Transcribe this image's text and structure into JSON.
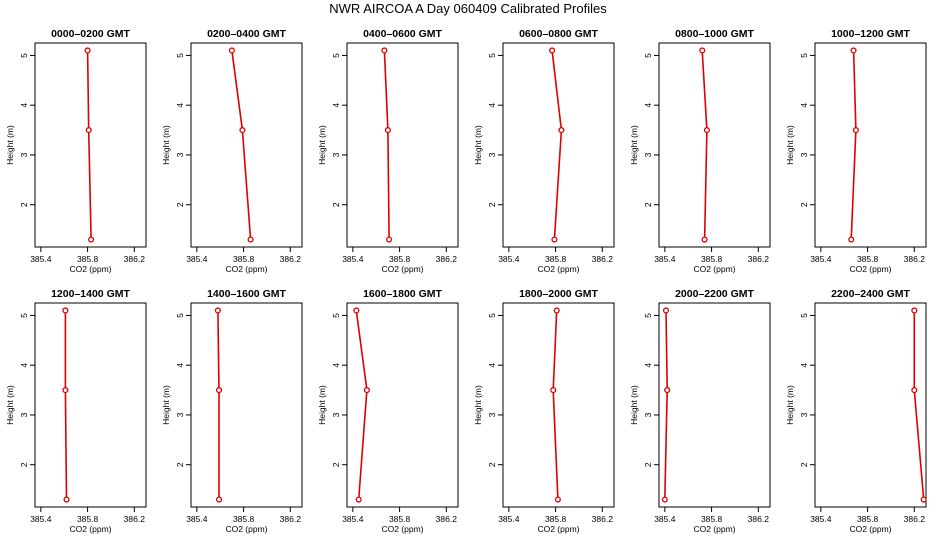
{
  "figure": {
    "title": "NWR AIRCOA A  Day 060409  Calibrated Profiles"
  },
  "style": {
    "series_color": "#dd0000",
    "axis_color": "#000000"
  },
  "chart_data": [
    {
      "type": "line",
      "title": "0000–0200 GMT",
      "xlabel": "CO2 (ppm)",
      "ylabel": "Height (m)",
      "xlim": [
        385.35,
        386.3
      ],
      "ylim": [
        1.15,
        5.25
      ],
      "xticks": [
        385.4,
        385.8,
        386.2
      ],
      "xtick_labels": [
        "385.4",
        "385.8",
        "386.2"
      ],
      "yticks": [
        2,
        3,
        4,
        5
      ],
      "ytick_labels": [
        "2",
        "3",
        "4",
        "5"
      ],
      "grid": false,
      "x": [
        385.8,
        385.81,
        385.83
      ],
      "y": [
        5.1,
        3.5,
        1.3
      ]
    },
    {
      "type": "line",
      "title": "0200–0400 GMT",
      "xlabel": "CO2 (ppm)",
      "ylabel": "Height (m)",
      "xlim": [
        385.35,
        386.3
      ],
      "ylim": [
        1.15,
        5.25
      ],
      "xticks": [
        385.4,
        385.8,
        386.2
      ],
      "xtick_labels": [
        "385.4",
        "385.8",
        "386.2"
      ],
      "yticks": [
        2,
        3,
        4,
        5
      ],
      "ytick_labels": [
        "2",
        "3",
        "4",
        "5"
      ],
      "grid": false,
      "x": [
        385.7,
        385.79,
        385.86
      ],
      "y": [
        5.1,
        3.5,
        1.3
      ]
    },
    {
      "type": "line",
      "title": "0400–0600 GMT",
      "xlabel": "CO2 (ppm)",
      "ylabel": "Height (m)",
      "xlim": [
        385.35,
        386.3
      ],
      "ylim": [
        1.15,
        5.25
      ],
      "xticks": [
        385.4,
        385.8,
        386.2
      ],
      "xtick_labels": [
        "385.4",
        "385.8",
        "386.2"
      ],
      "yticks": [
        2,
        3,
        4,
        5
      ],
      "ytick_labels": [
        "2",
        "3",
        "4",
        "5"
      ],
      "grid": false,
      "x": [
        385.67,
        385.7,
        385.71
      ],
      "y": [
        5.1,
        3.5,
        1.3
      ]
    },
    {
      "type": "line",
      "title": "0600–0800 GMT",
      "xlabel": "CO2 (ppm)",
      "ylabel": "Height (m)",
      "xlim": [
        385.35,
        386.3
      ],
      "ylim": [
        1.15,
        5.25
      ],
      "xticks": [
        385.4,
        385.8,
        386.2
      ],
      "xtick_labels": [
        "385.4",
        "385.8",
        "386.2"
      ],
      "yticks": [
        2,
        3,
        4,
        5
      ],
      "ytick_labels": [
        "2",
        "3",
        "4",
        "5"
      ],
      "grid": false,
      "x": [
        385.77,
        385.85,
        385.79
      ],
      "y": [
        5.1,
        3.5,
        1.3
      ]
    },
    {
      "type": "line",
      "title": "0800–1000 GMT",
      "xlabel": "CO2 (ppm)",
      "ylabel": "Height (m)",
      "xlim": [
        385.35,
        386.3
      ],
      "ylim": [
        1.15,
        5.25
      ],
      "xticks": [
        385.4,
        385.8,
        386.2
      ],
      "xtick_labels": [
        "385.4",
        "385.8",
        "386.2"
      ],
      "yticks": [
        2,
        3,
        4,
        5
      ],
      "ytick_labels": [
        "2",
        "3",
        "4",
        "5"
      ],
      "grid": false,
      "x": [
        385.72,
        385.76,
        385.74
      ],
      "y": [
        5.1,
        3.5,
        1.3
      ]
    },
    {
      "type": "line",
      "title": "1000–1200 GMT",
      "xlabel": "CO2 (ppm)",
      "ylabel": "Height (m)",
      "xlim": [
        385.35,
        386.3
      ],
      "ylim": [
        1.15,
        5.25
      ],
      "xticks": [
        385.4,
        385.8,
        386.2
      ],
      "xtick_labels": [
        "385.4",
        "385.8",
        "386.2"
      ],
      "yticks": [
        2,
        3,
        4,
        5
      ],
      "ytick_labels": [
        "2",
        "3",
        "4",
        "5"
      ],
      "grid": false,
      "x": [
        385.68,
        385.7,
        385.66
      ],
      "y": [
        5.1,
        3.5,
        1.3
      ]
    },
    {
      "type": "line",
      "title": "1200–1400 GMT",
      "xlabel": "CO2 (ppm)",
      "ylabel": "Height (m)",
      "xlim": [
        385.35,
        386.3
      ],
      "ylim": [
        1.15,
        5.25
      ],
      "xticks": [
        385.4,
        385.8,
        386.2
      ],
      "xtick_labels": [
        "385.4",
        "385.8",
        "386.2"
      ],
      "yticks": [
        2,
        3,
        4,
        5
      ],
      "ytick_labels": [
        "2",
        "3",
        "4",
        "5"
      ],
      "grid": false,
      "x": [
        385.61,
        385.61,
        385.62
      ],
      "y": [
        5.1,
        3.5,
        1.3
      ]
    },
    {
      "type": "line",
      "title": "1400–1600 GMT",
      "xlabel": "CO2 (ppm)",
      "ylabel": "Height (m)",
      "xlim": [
        385.35,
        386.3
      ],
      "ylim": [
        1.15,
        5.25
      ],
      "xticks": [
        385.4,
        385.8,
        386.2
      ],
      "xtick_labels": [
        "385.4",
        "385.8",
        "386.2"
      ],
      "yticks": [
        2,
        3,
        4,
        5
      ],
      "ytick_labels": [
        "2",
        "3",
        "4",
        "5"
      ],
      "grid": false,
      "x": [
        385.58,
        385.59,
        385.59
      ],
      "y": [
        5.1,
        3.5,
        1.3
      ]
    },
    {
      "type": "line",
      "title": "1600–1800 GMT",
      "xlabel": "CO2 (ppm)",
      "ylabel": "Height (m)",
      "xlim": [
        385.35,
        386.3
      ],
      "ylim": [
        1.15,
        5.25
      ],
      "xticks": [
        385.4,
        385.8,
        386.2
      ],
      "xtick_labels": [
        "385.4",
        "385.8",
        "386.2"
      ],
      "yticks": [
        2,
        3,
        4,
        5
      ],
      "ytick_labels": [
        "2",
        "3",
        "4",
        "5"
      ],
      "grid": false,
      "x": [
        385.43,
        385.52,
        385.45
      ],
      "y": [
        5.1,
        3.5,
        1.3
      ]
    },
    {
      "type": "line",
      "title": "1800–2000 GMT",
      "xlabel": "CO2 (ppm)",
      "ylabel": "Height (m)",
      "xlim": [
        385.35,
        386.3
      ],
      "ylim": [
        1.15,
        5.25
      ],
      "xticks": [
        385.4,
        385.8,
        386.2
      ],
      "xtick_labels": [
        "385.4",
        "385.8",
        "386.2"
      ],
      "yticks": [
        2,
        3,
        4,
        5
      ],
      "ytick_labels": [
        "2",
        "3",
        "4",
        "5"
      ],
      "grid": false,
      "x": [
        385.81,
        385.78,
        385.82
      ],
      "y": [
        5.1,
        3.5,
        1.3
      ]
    },
    {
      "type": "line",
      "title": "2000–2200 GMT",
      "xlabel": "CO2 (ppm)",
      "ylabel": "Height (m)",
      "xlim": [
        385.35,
        386.3
      ],
      "ylim": [
        1.15,
        5.25
      ],
      "xticks": [
        385.4,
        385.8,
        386.2
      ],
      "xtick_labels": [
        "385.4",
        "385.8",
        "386.2"
      ],
      "yticks": [
        2,
        3,
        4,
        5
      ],
      "ytick_labels": [
        "2",
        "3",
        "4",
        "5"
      ],
      "grid": false,
      "x": [
        385.41,
        385.42,
        385.4
      ],
      "y": [
        5.1,
        3.5,
        1.3
      ]
    },
    {
      "type": "line",
      "title": "2200–2400 GMT",
      "xlabel": "CO2 (ppm)",
      "ylabel": "Height (m)",
      "xlim": [
        385.35,
        386.3
      ],
      "ylim": [
        1.15,
        5.25
      ],
      "xticks": [
        385.4,
        385.8,
        386.2
      ],
      "xtick_labels": [
        "385.4",
        "385.8",
        "386.2"
      ],
      "yticks": [
        2,
        3,
        4,
        5
      ],
      "ytick_labels": [
        "2",
        "3",
        "4",
        "5"
      ],
      "grid": false,
      "x": [
        386.2,
        386.2,
        386.28
      ],
      "y": [
        5.1,
        3.5,
        1.3
      ]
    }
  ]
}
